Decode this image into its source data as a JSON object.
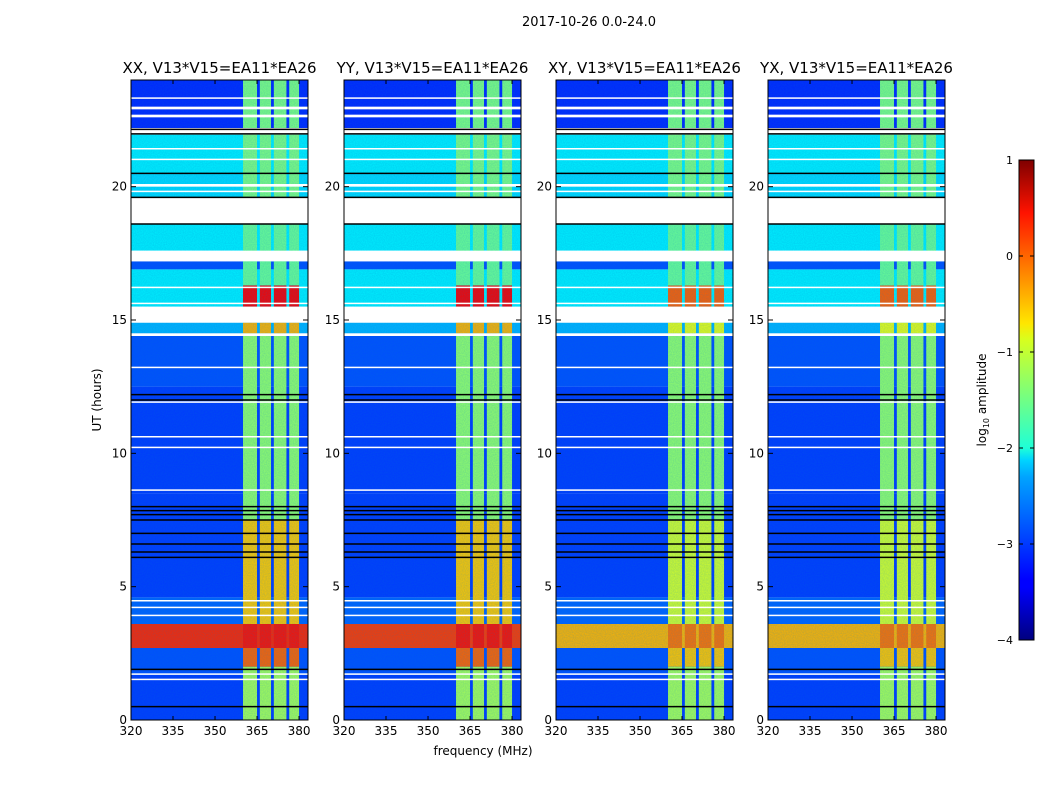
{
  "figure": {
    "suptitle": "2017-10-26 0.0-24.0",
    "xlabel": "frequency (MHz)",
    "ylabel": "UT (hours)"
  },
  "colorbar": {
    "label_main": "log",
    "label_sub": "10",
    "label_rest": " amplitude",
    "range": [
      -4,
      1
    ],
    "ticks": [
      1,
      0,
      -1,
      -2,
      -3,
      -4
    ],
    "tick_labels": [
      "1",
      "0",
      "−1",
      "−2",
      "−3",
      "−4"
    ],
    "colormap": "jet"
  },
  "chart_data": [
    {
      "type": "heatmap",
      "title": "XX, V13*V15=EA11*EA26",
      "pol": "XX",
      "strong_band_level": 0.2,
      "rfi_scale": 1.0
    },
    {
      "type": "heatmap",
      "title": "YY, V13*V15=EA11*EA26",
      "pol": "YY",
      "strong_band_level": 0.1,
      "rfi_scale": 1.0
    },
    {
      "type": "heatmap",
      "title": "XY, V13*V15=EA11*EA26",
      "pol": "XY",
      "strong_band_level": -0.5,
      "rfi_scale": 0.6
    },
    {
      "type": "heatmap",
      "title": "YX, V13*V15=EA11*EA26",
      "pol": "YX",
      "strong_band_level": -0.5,
      "rfi_scale": 0.6
    }
  ],
  "axes": {
    "xlim": [
      320,
      383.2
    ],
    "ylim": [
      0,
      24
    ],
    "xticks": [
      320,
      335,
      350,
      365,
      380
    ],
    "xtick_labels": [
      "320",
      "335",
      "350",
      "365",
      "380"
    ],
    "yticks": [
      0,
      5,
      10,
      15,
      20
    ],
    "ytick_labels": [
      "0",
      "5",
      "10",
      "15",
      "20"
    ]
  },
  "structure": {
    "background_bands": [
      {
        "ut": [
          0,
          1.7
        ],
        "level": -3.1
      },
      {
        "ut": [
          1.7,
          2.7
        ],
        "level": -3.0
      },
      {
        "ut": [
          2.7,
          3.6
        ],
        "level": "strong"
      },
      {
        "ut": [
          3.6,
          4.6
        ],
        "level": -2.9
      },
      {
        "ut": [
          4.6,
          8.5
        ],
        "level": -3.1
      },
      {
        "ut": [
          8.5,
          12.5
        ],
        "level": -3.1
      },
      {
        "ut": [
          12.5,
          14.5
        ],
        "level": -3.0
      },
      {
        "ut": [
          14.5,
          14.9
        ],
        "level": -2.5
      },
      {
        "ut": [
          15.5,
          16.9
        ],
        "level": -2.2
      },
      {
        "ut": [
          16.9,
          17.2
        ],
        "level": -3.0
      },
      {
        "ut": [
          17.6,
          18.6
        ],
        "level": -2.2
      },
      {
        "ut": [
          19.6,
          20.5
        ],
        "level": -2.3
      },
      {
        "ut": [
          20.5,
          22.0
        ],
        "level": -2.2
      },
      {
        "ut": [
          22.2,
          24
        ],
        "level": -3.2
      }
    ],
    "flagged_white": [
      [
        14.9,
        15.5
      ],
      [
        17.2,
        17.6
      ],
      [
        18.6,
        19.6
      ],
      [
        1.5,
        1.55
      ],
      [
        1.7,
        1.75
      ],
      [
        3.9,
        3.95
      ],
      [
        4.2,
        4.25
      ],
      [
        4.45,
        4.5
      ],
      [
        8.6,
        8.65
      ],
      [
        10.2,
        10.25
      ],
      [
        10.6,
        10.65
      ],
      [
        11.9,
        11.95
      ],
      [
        13.2,
        13.25
      ],
      [
        14.4,
        14.5
      ],
      [
        15.6,
        15.65
      ],
      [
        16.2,
        16.25
      ],
      [
        19.8,
        19.85
      ],
      [
        20.0,
        20.1
      ],
      [
        21.0,
        21.05
      ],
      [
        21.4,
        21.45
      ],
      [
        21.95,
        22.2
      ],
      [
        22.6,
        22.7
      ],
      [
        22.9,
        23.0
      ],
      [
        23.3,
        23.35
      ]
    ],
    "flagged_black": [
      0.5,
      1.9,
      6.1,
      6.3,
      6.6,
      7.0,
      7.5,
      7.7,
      7.85,
      8.0,
      12.0,
      12.2,
      20.5,
      21.98,
      22.15,
      18.6,
      19.6
    ],
    "rfi_channels": [
      [
        360,
        365
      ],
      [
        366,
        370
      ],
      [
        371,
        375.5
      ],
      [
        376.5,
        380
      ]
    ],
    "rfi_bands": [
      {
        "ut": [
          0,
          2.0
        ],
        "level": -1.3
      },
      {
        "ut": [
          2.0,
          2.7
        ],
        "level": -0.1
      },
      {
        "ut": [
          2.7,
          3.6
        ],
        "level": 0.3
      },
      {
        "ut": [
          3.6,
          7.5
        ],
        "level": -0.6
      },
      {
        "ut": [
          7.5,
          14.5
        ],
        "level": -1.4
      },
      {
        "ut": [
          14.5,
          14.9
        ],
        "level": -0.5
      },
      {
        "ut": [
          15.5,
          16.3
        ],
        "level": 0.4
      },
      {
        "ut": [
          16.3,
          18.6
        ],
        "level": -1.6
      },
      {
        "ut": [
          19.6,
          24
        ],
        "level": -1.5
      }
    ]
  }
}
